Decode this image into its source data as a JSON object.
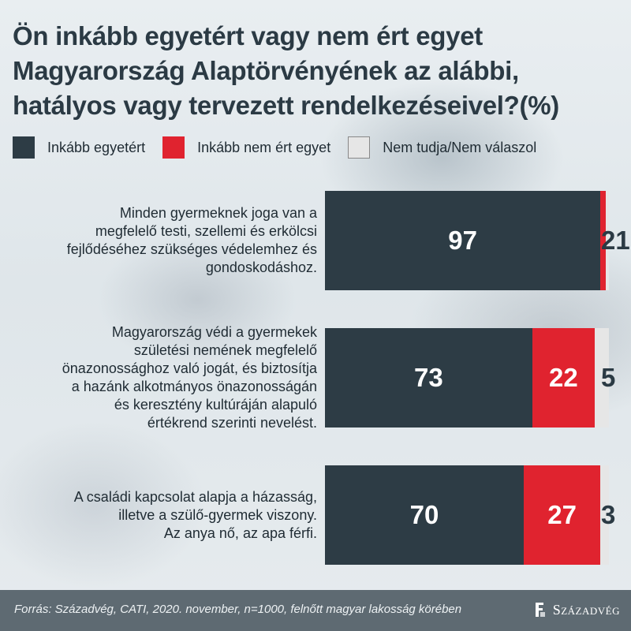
{
  "title_lines": [
    "Ön inkább egyetért vagy nem ért egyet",
    "Magyarország Alaptörvényének az alábbi,",
    "hatályos vagy tervezett rendelkezéseivel?(%)"
  ],
  "colors": {
    "agree": "#2d3c45",
    "disagree": "#e0232f",
    "dontknow": "#e6e6e6",
    "text": "#1f2b33",
    "footer": "#5e6a72"
  },
  "chart_data": {
    "type": "bar",
    "orientation": "horizontal",
    "stacked": true,
    "title": "Ön inkább egyetért vagy nem ért egyet Magyarország Alaptörvényének az alábbi, hatályos vagy tervezett rendelkezéseivel?(%)",
    "legend": [
      "Inkább egyetért",
      "Inkább nem ért egyet",
      "Nem tudja/Nem válaszol"
    ],
    "legend_position": "top-left",
    "xlim": [
      0,
      100
    ],
    "categories": [
      {
        "label_lines": [
          "Minden gyermeknek joga van a",
          "megfelelő testi, szellemi és erkölcsi",
          "fejlődéséhez szükséges védelemhez és",
          "gondoskodáshoz."
        ]
      },
      {
        "label_lines": [
          "Magyarország védi a gyermekek",
          "születési nemének megfelelő",
          "önazonossághoz való jogát, és biztosítja",
          "a hazánk alkotmányos önazonosságán",
          "és keresztény kultúráján alapuló",
          "értékrend szerinti nevelést."
        ]
      },
      {
        "label_lines": [
          "A családi kapcsolat alapja a házasság,",
          "illetve a szülő-gyermek viszony.",
          "Az anya nő, az apa férfi."
        ]
      }
    ],
    "series": [
      {
        "name": "Inkább egyetért",
        "values": [
          97,
          73,
          70
        ]
      },
      {
        "name": "Inkább nem ért egyet",
        "values": [
          2,
          22,
          27
        ]
      },
      {
        "name": "Nem tudja/Nem válaszol",
        "values": [
          1,
          5,
          3
        ]
      }
    ]
  },
  "footer": {
    "source": "Forrás: Századvég, CATI, 2020. november, n=1000, felnőtt magyar lakosság körében",
    "logo": "Századvég"
  }
}
